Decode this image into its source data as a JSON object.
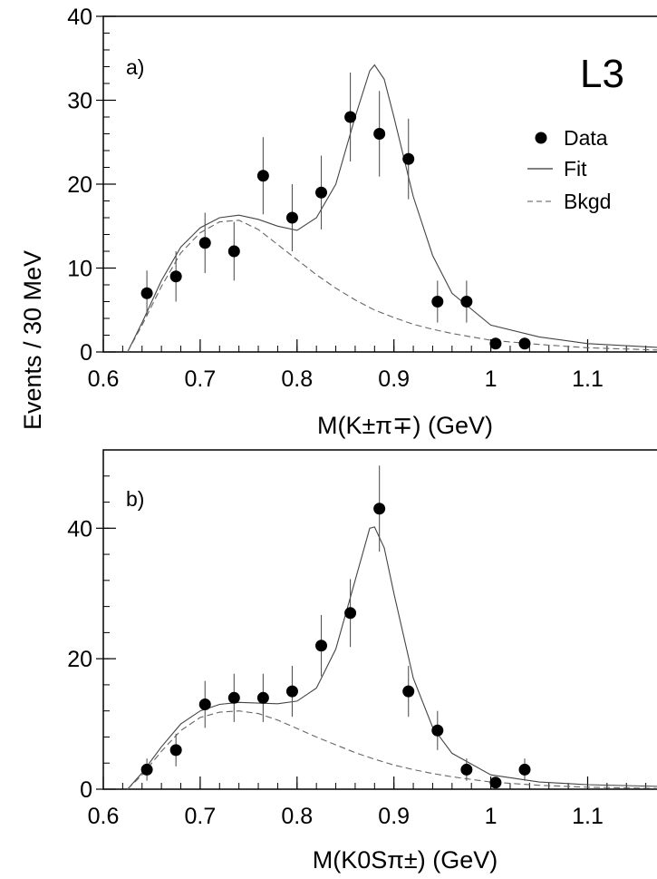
{
  "ylabel": "Events / 30 MeV",
  "experiment_label": "L3",
  "legend": {
    "data_label": "Data",
    "fit_label": "Fit",
    "bkgd_label": "Bkgd"
  },
  "panels": [
    {
      "label": "a)",
      "xlabel": "M(K±π∓)  (GeV)",
      "xticks": [
        "0.6",
        "0.7",
        "0.8",
        "0.9",
        "1",
        "1.1"
      ],
      "yticks": [
        "0",
        "10",
        "20",
        "30",
        "40"
      ]
    },
    {
      "label": "b)",
      "xlabel": "M(K0Sπ±)  (GeV)",
      "xticks": [
        "0.6",
        "0.7",
        "0.8",
        "0.9",
        "1",
        "1.1"
      ],
      "yticks": [
        "0",
        "20",
        "40"
      ]
    }
  ],
  "chart_data": [
    {
      "type": "scatter",
      "title": "",
      "panel_label": "a)",
      "xlabel": "M(K±π∓)  (GeV)",
      "ylabel": "Events / 30 MeV",
      "xlim": [
        0.6,
        1.18
      ],
      "ylim": [
        0,
        40
      ],
      "grid": false,
      "legend_position": "top-right",
      "series": [
        {
          "name": "Data",
          "style": "points-with-error-bars",
          "x": [
            0.645,
            0.675,
            0.705,
            0.735,
            0.765,
            0.795,
            0.825,
            0.855,
            0.885,
            0.915,
            0.945,
            0.975,
            1.005,
            1.035
          ],
          "y": [
            7,
            9,
            13,
            12,
            21,
            16,
            19,
            28,
            26,
            23,
            6,
            6,
            1,
            1
          ],
          "err": [
            2.7,
            3.0,
            3.6,
            3.5,
            4.6,
            4.0,
            4.4,
            5.3,
            5.1,
            4.8,
            2.5,
            2.5,
            0.5,
            0.5
          ]
        },
        {
          "name": "Fit",
          "style": "solid-line",
          "x": [
            0.625,
            0.64,
            0.66,
            0.68,
            0.7,
            0.72,
            0.74,
            0.76,
            0.78,
            0.8,
            0.82,
            0.84,
            0.86,
            0.875,
            0.88,
            0.89,
            0.9,
            0.92,
            0.94,
            0.96,
            1.0,
            1.05,
            1.1,
            1.18
          ],
          "y": [
            0,
            3.5,
            8.5,
            12.5,
            14.8,
            16.0,
            16.3,
            15.8,
            15.0,
            14.5,
            16.0,
            20.0,
            28.0,
            33.5,
            34.2,
            32.5,
            28.0,
            18.5,
            11.5,
            7.0,
            3.2,
            1.8,
            1.0,
            0.5
          ]
        },
        {
          "name": "Bkgd",
          "style": "dashed-line",
          "x": [
            0.625,
            0.64,
            0.66,
            0.68,
            0.7,
            0.72,
            0.74,
            0.76,
            0.78,
            0.8,
            0.82,
            0.84,
            0.86,
            0.88,
            0.9,
            0.92,
            0.94,
            0.96,
            1.0,
            1.05,
            1.1,
            1.18
          ],
          "y": [
            0,
            3.2,
            7.8,
            11.8,
            14.2,
            15.5,
            15.7,
            14.6,
            12.8,
            11.0,
            9.2,
            7.6,
            6.2,
            5.0,
            4.1,
            3.3,
            2.7,
            2.2,
            1.4,
            0.9,
            0.5,
            0.2
          ]
        }
      ]
    },
    {
      "type": "scatter",
      "title": "",
      "panel_label": "b)",
      "xlabel": "M(K0Sπ±)  (GeV)",
      "ylabel": "Events / 30 MeV",
      "xlim": [
        0.6,
        1.18
      ],
      "ylim": [
        0,
        52
      ],
      "grid": false,
      "series": [
        {
          "name": "Data",
          "style": "points-with-error-bars",
          "x": [
            0.645,
            0.675,
            0.705,
            0.735,
            0.765,
            0.795,
            0.825,
            0.855,
            0.885,
            0.915,
            0.945,
            0.975,
            1.005,
            1.035
          ],
          "y": [
            3,
            6,
            13,
            14,
            14,
            15,
            22,
            27,
            43,
            15,
            9,
            3,
            1,
            3
          ],
          "err": [
            1.7,
            2.5,
            3.6,
            3.7,
            3.7,
            3.9,
            4.7,
            5.2,
            6.6,
            3.9,
            3.0,
            1.7,
            0.6,
            1.7
          ]
        },
        {
          "name": "Fit",
          "style": "solid-line",
          "x": [
            0.625,
            0.64,
            0.66,
            0.68,
            0.7,
            0.72,
            0.74,
            0.76,
            0.78,
            0.8,
            0.82,
            0.84,
            0.86,
            0.875,
            0.88,
            0.89,
            0.9,
            0.92,
            0.94,
            0.96,
            1.0,
            1.05,
            1.1,
            1.18
          ],
          "y": [
            0,
            2.5,
            6.5,
            10.0,
            12.0,
            13.0,
            13.3,
            13.2,
            13.1,
            13.5,
            15.5,
            21.5,
            32.0,
            40.0,
            40.2,
            37.0,
            30.0,
            17.0,
            9.5,
            5.5,
            2.2,
            1.1,
            0.7,
            0.4
          ]
        },
        {
          "name": "Bkgd",
          "style": "dashed-line",
          "x": [
            0.625,
            0.64,
            0.66,
            0.68,
            0.7,
            0.72,
            0.74,
            0.76,
            0.78,
            0.8,
            0.82,
            0.84,
            0.86,
            0.88,
            0.9,
            0.92,
            0.94,
            0.96,
            1.0,
            1.05,
            1.1,
            1.18
          ],
          "y": [
            0,
            2.2,
            5.8,
            9.0,
            11.0,
            11.8,
            12.0,
            11.6,
            10.6,
            9.3,
            8.0,
            6.8,
            5.6,
            4.6,
            3.7,
            3.0,
            2.4,
            1.9,
            1.1,
            0.6,
            0.3,
            0.1
          ]
        }
      ]
    }
  ]
}
